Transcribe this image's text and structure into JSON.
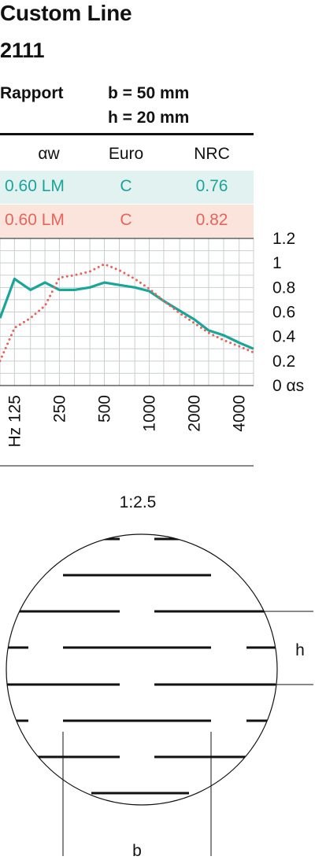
{
  "product": {
    "title": "Custom Line",
    "code": "2111"
  },
  "rapport": {
    "label": "Rapport",
    "b": "b = 50 mm",
    "h": "h = 20 mm"
  },
  "table": {
    "headers": [
      "αw",
      "Euro",
      "NRC"
    ],
    "rows": [
      {
        "aw": "0.60 LM",
        "euro": "C",
        "nrc": "0.76",
        "color": "#19a59a"
      },
      {
        "aw": "0.60 LM",
        "euro": "C",
        "nrc": "0.82",
        "color": "#e8645a"
      }
    ]
  },
  "chart_data": {
    "type": "line",
    "x": [
      100,
      125,
      160,
      200,
      250,
      315,
      400,
      500,
      630,
      800,
      1000,
      1250,
      1600,
      2000,
      2500,
      3150,
      4000,
      5000
    ],
    "series": [
      {
        "values": [
          0.55,
          0.87,
          0.78,
          0.84,
          0.78,
          0.78,
          0.8,
          0.84,
          0.82,
          0.8,
          0.77,
          0.69,
          0.61,
          0.54,
          0.45,
          0.41,
          0.35,
          0.3
        ],
        "color": "#19a59a",
        "style": "solid"
      },
      {
        "values": [
          0.2,
          0.47,
          0.55,
          0.65,
          0.88,
          0.9,
          0.93,
          0.99,
          0.94,
          0.87,
          0.79,
          0.69,
          0.59,
          0.51,
          0.43,
          0.37,
          0.32,
          0.27
        ],
        "color": "#e8645a",
        "style": "dotted"
      }
    ],
    "xtick_labels": [
      "Hz 125",
      "250",
      "500",
      "1000",
      "2000",
      "4000"
    ],
    "xtick_values": [
      125,
      250,
      500,
      1000,
      2000,
      4000
    ],
    "ytick_labels": [
      "1.2",
      "1",
      "0.8",
      "0.6",
      "0.4",
      "0.2",
      "0 αs"
    ],
    "ytick_values": [
      1.2,
      1.0,
      0.8,
      0.6,
      0.4,
      0.2,
      0
    ],
    "ylim": [
      0,
      1.2
    ],
    "xscale": "log",
    "grid": true
  },
  "diagram": {
    "scale": "1:2.5",
    "h_label": "h",
    "b_label": "b"
  }
}
